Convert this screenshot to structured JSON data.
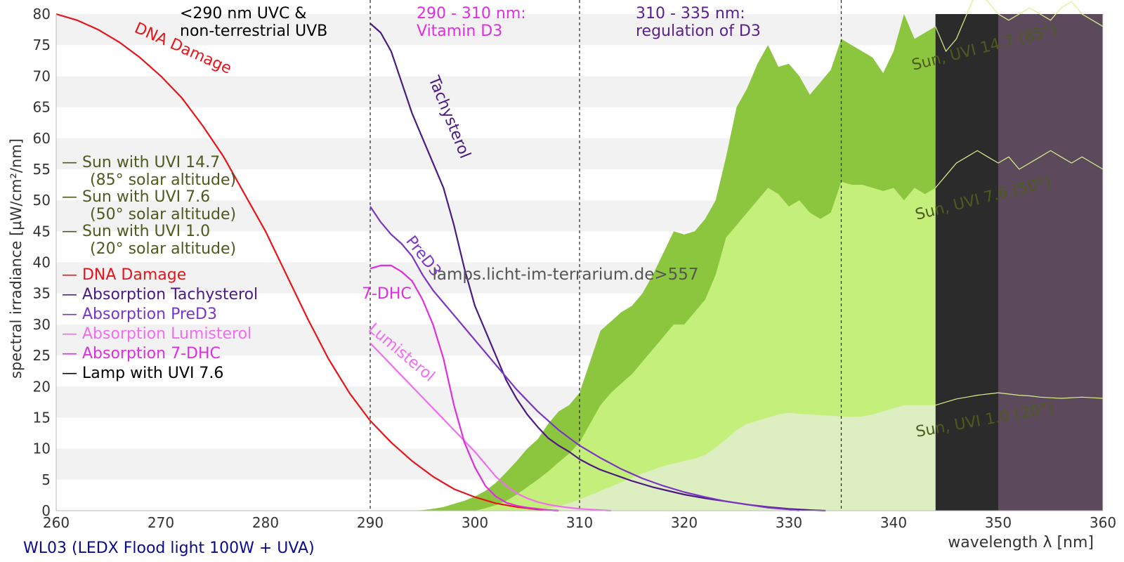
{
  "colors": {
    "dna": "#e8141b",
    "tachysterol": "#4b1a82",
    "pred3": "#7b35c6",
    "lumisterol": "#f26cf2",
    "dhc": "#dd2edf",
    "sun_high": "#8cc63f",
    "sun_mid": "#c4ef7a",
    "sun_low": "#ddeec1",
    "sun_text": "#4d5a1e",
    "lamp": "#000000",
    "band_dark": "#2b2b2b",
    "band_purple": "#5c4a5c",
    "stripe": "#f2f2f2",
    "footer": "#0a0a8c"
  },
  "chart_data": {
    "type": "line",
    "title": "",
    "xlabel": "wavelength λ [nm]",
    "ylabel": "spectral irradiance [µW/cm²/nm]",
    "xlim": [
      260,
      360
    ],
    "ylim": [
      0,
      80
    ],
    "xticks": [
      260,
      270,
      280,
      290,
      300,
      310,
      320,
      330,
      340,
      350,
      360
    ],
    "yticks": [
      0,
      5,
      10,
      15,
      20,
      25,
      30,
      35,
      40,
      45,
      50,
      55,
      60,
      65,
      70,
      75,
      80
    ],
    "grid": "horizontal alternating stripes",
    "legend_position": "left",
    "legend": [
      {
        "text": "— Sun with UVI 14.7",
        "text2": "(85° solar altitude)",
        "color": "#4d5a1e"
      },
      {
        "text": "— Sun with UVI 7.6",
        "text2": "(50° solar altitude)",
        "color": "#4d5a1e"
      },
      {
        "text": "— Sun with UVI 1.0",
        "text2": "(20° solar altitude)",
        "color": "#4d5a1e"
      },
      {
        "text": "— DNA Damage",
        "color": "#e8141b"
      },
      {
        "text": "— Absorption Tachysterol",
        "color": "#4b1a82"
      },
      {
        "text": "— Absorption PreD3",
        "color": "#7b35c6"
      },
      {
        "text": "— Absorption Lumisterol",
        "color": "#f26cf2"
      },
      {
        "text": "— Absorption 7-DHC",
        "color": "#dd2edf"
      },
      {
        "text": "— Lamp with UVI 7.6",
        "color": "#000000"
      }
    ],
    "regions": [
      {
        "x": 290,
        "label1": "<290 nm UVC &",
        "label2": "non-terrestrial UVB",
        "color": "#000000"
      },
      {
        "x": 310,
        "label1": "290 - 310 nm:",
        "label2": "Vitamin D3",
        "color": "#dd2edf"
      },
      {
        "x": 335,
        "label1": "310 - 335 nm:",
        "label2": "regulation of D3",
        "color": "#5a1f8c"
      }
    ],
    "vlines": [
      290,
      310,
      335
    ],
    "bands": [
      {
        "x0": 344,
        "x1": 350,
        "color": "#2b2b2b"
      },
      {
        "x0": 350,
        "x1": 360,
        "color": "#5c4a5c"
      }
    ],
    "series": [
      {
        "name": "Sun with UVI 14.7",
        "kind": "area",
        "color": "#8cc63f",
        "label": "Sun, UVI 14.7 (85°)",
        "x": [
          293.5,
          295,
          296,
          297,
          298,
          299,
          300,
          301,
          302,
          303,
          304,
          305,
          306,
          307,
          308,
          309,
          310,
          311,
          312,
          313,
          314,
          315,
          316,
          317,
          318,
          319,
          320,
          321,
          322,
          323,
          324,
          325,
          326,
          327,
          328,
          329,
          330,
          331,
          332,
          333,
          334,
          335,
          336,
          337,
          338,
          339,
          340,
          341,
          342,
          343,
          344,
          345,
          346,
          347,
          348,
          349,
          350,
          351,
          352,
          353,
          354,
          355,
          356,
          357,
          358,
          359,
          360
        ],
        "values": [
          0,
          0.1,
          0.3,
          0.6,
          1.1,
          1.6,
          2.3,
          3.2,
          4.5,
          6.2,
          8,
          10,
          11.5,
          14,
          16,
          17,
          19,
          24,
          29,
          30.5,
          32,
          33,
          35,
          38,
          41.5,
          45,
          44.5,
          45,
          47,
          50,
          57,
          65,
          68,
          72,
          75,
          71.5,
          72,
          70,
          67,
          69,
          71,
          76,
          75,
          74,
          73,
          70.5,
          74,
          80,
          76,
          77,
          78,
          74,
          76,
          80,
          84,
          82,
          80,
          79,
          80,
          81,
          80,
          79,
          81,
          82,
          80,
          79,
          78
        ]
      },
      {
        "name": "Sun with UVI 7.6",
        "kind": "area",
        "color": "#c4ef7a",
        "label": "Sun, UVI 7.6 (50°)",
        "x": [
          300,
          301,
          302,
          303,
          304,
          305,
          306,
          307,
          308,
          309,
          310,
          311,
          312,
          313,
          314,
          315,
          316,
          317,
          318,
          319,
          320,
          321,
          322,
          323,
          324,
          325,
          326,
          327,
          328,
          329,
          330,
          331,
          332,
          333,
          334,
          335,
          336,
          337,
          338,
          339,
          340,
          341,
          342,
          343,
          344,
          345,
          346,
          347,
          348,
          349,
          350,
          351,
          352,
          353,
          354,
          355,
          356,
          357,
          358,
          359,
          360
        ],
        "values": [
          0,
          0.4,
          0.9,
          1.6,
          2.6,
          3.8,
          5,
          6.3,
          7.8,
          9.2,
          11,
          14,
          17,
          19,
          20.5,
          22,
          24,
          26,
          28,
          30,
          30,
          32,
          34,
          38,
          44,
          46,
          48,
          50,
          52,
          51,
          49,
          50,
          48,
          47,
          48,
          53,
          52.5,
          52.5,
          52,
          51.5,
          52,
          50,
          52,
          51,
          52,
          54,
          56,
          57,
          58,
          57,
          56,
          57,
          55,
          56,
          57,
          58,
          57,
          56,
          57,
          56,
          55
        ]
      },
      {
        "name": "Sun with UVI 1.0",
        "kind": "area",
        "color": "#ddeec1",
        "label": "Sun, UVI 1.0 (20°)",
        "x": [
          306,
          307,
          308,
          309,
          310,
          311,
          312,
          313,
          314,
          315,
          316,
          317,
          318,
          319,
          320,
          321,
          322,
          323,
          324,
          325,
          326,
          327,
          328,
          329,
          330,
          331,
          332,
          333,
          334,
          335,
          336,
          337,
          338,
          339,
          340,
          341,
          342,
          343,
          344,
          345,
          346,
          347,
          348,
          349,
          350,
          351,
          352,
          353,
          354,
          355,
          356,
          357,
          358,
          359,
          360
        ],
        "values": [
          0,
          0.3,
          0.7,
          1.2,
          1.8,
          2.5,
          3.2,
          3.9,
          4.6,
          5.3,
          6,
          6.6,
          7.2,
          7.6,
          8,
          8.4,
          9,
          10.2,
          11.5,
          13,
          14,
          14.5,
          15,
          15.5,
          15.8,
          15.6,
          15.5,
          15.4,
          15.3,
          15.2,
          15.1,
          15.2,
          15.5,
          16,
          16.5,
          17,
          17,
          17,
          17,
          17.5,
          18,
          18.3,
          18.6,
          18.8,
          19,
          18.8,
          18.6,
          18.5,
          18.3,
          18.2,
          18.1,
          18.2,
          18.3,
          18.2,
          18.1
        ]
      },
      {
        "name": "DNA Damage",
        "kind": "line",
        "color": "#e8141b",
        "label": "DNA Damage",
        "x": [
          260,
          262,
          264,
          266,
          268,
          270,
          272,
          274,
          276,
          278,
          280,
          282,
          284,
          286,
          288,
          290,
          292,
          294,
          296,
          298,
          300,
          302,
          304,
          306,
          308
        ],
        "values": [
          80,
          79,
          77.5,
          75.5,
          73,
          70,
          66.5,
          62,
          57,
          51,
          45,
          38,
          31,
          24.5,
          19,
          14.5,
          11,
          8,
          5.5,
          3.5,
          2.2,
          1.2,
          0.6,
          0.2,
          0
        ]
      },
      {
        "name": "Absorption Tachysterol",
        "kind": "line",
        "color": "#4b1a82",
        "label": "Tachysterol",
        "x": [
          290,
          291,
          292,
          293,
          294,
          295,
          296,
          297,
          298,
          299,
          300,
          301,
          302,
          303,
          304,
          305,
          306,
          307,
          308,
          309,
          310,
          311,
          312,
          313,
          314,
          315,
          316,
          317,
          318,
          319,
          320,
          322,
          324,
          326,
          328,
          330,
          332,
          333.5
        ],
        "values": [
          78.5,
          77,
          74,
          69,
          64,
          60,
          56,
          52,
          46,
          39,
          33,
          29,
          25,
          21,
          18,
          15.5,
          13.5,
          11.7,
          10.5,
          9.5,
          8.3,
          7.4,
          6.6,
          6,
          5.4,
          4.8,
          4.3,
          3.8,
          3.4,
          3,
          2.6,
          2,
          1.5,
          1,
          0.6,
          0.3,
          0.1,
          0
        ]
      },
      {
        "name": "Absorption PreD3",
        "kind": "line",
        "color": "#7b35c6",
        "label": "PreD3",
        "x": [
          290,
          291,
          292,
          293,
          294,
          295,
          296,
          298,
          300,
          302,
          304,
          306,
          308,
          310,
          312,
          314,
          316,
          318,
          320,
          322,
          324,
          326,
          328,
          330,
          331
        ],
        "values": [
          49,
          46.5,
          44.5,
          43,
          41,
          38,
          35.5,
          31.5,
          27.5,
          23.5,
          19.5,
          16,
          13,
          10.5,
          8.5,
          6.7,
          5.2,
          4,
          3,
          2.2,
          1.5,
          1,
          0.5,
          0.2,
          0
        ]
      },
      {
        "name": "Absorption Lumisterol",
        "kind": "line",
        "color": "#f26cf2",
        "label": "Lumisterol",
        "x": [
          290,
          292,
          294,
          296,
          298,
          300,
          301,
          302,
          303,
          304,
          305,
          306,
          307,
          308,
          309,
          310,
          311,
          312,
          313
        ],
        "values": [
          27,
          23.5,
          20,
          16.5,
          13,
          9.5,
          7.5,
          5.5,
          4,
          2.8,
          2,
          1.4,
          1,
          0.7,
          0.5,
          0.3,
          0.2,
          0.1,
          0
        ]
      },
      {
        "name": "Absorption 7-DHC",
        "kind": "line",
        "color": "#dd2edf",
        "label": "7-DHC",
        "x": [
          290,
          291,
          292,
          293,
          294,
          295,
          296,
          297,
          298,
          299,
          300,
          301,
          302,
          303,
          304,
          305,
          306,
          307,
          308
        ],
        "values": [
          39,
          39.5,
          39.5,
          38.5,
          37,
          34,
          30,
          24.5,
          17,
          11,
          7,
          4,
          2.3,
          1.3,
          0.8,
          0.5,
          0.3,
          0.1,
          0
        ]
      },
      {
        "name": "Lamp with UVI 7.6",
        "kind": "line",
        "color": "#000000",
        "label": "",
        "x": [
          344
        ],
        "values": [
          0
        ]
      }
    ]
  },
  "watermark": "lamps.licht-im-terrarium.de>557",
  "footer": "WL03 (LEDX Flood light 100W + UVA)"
}
